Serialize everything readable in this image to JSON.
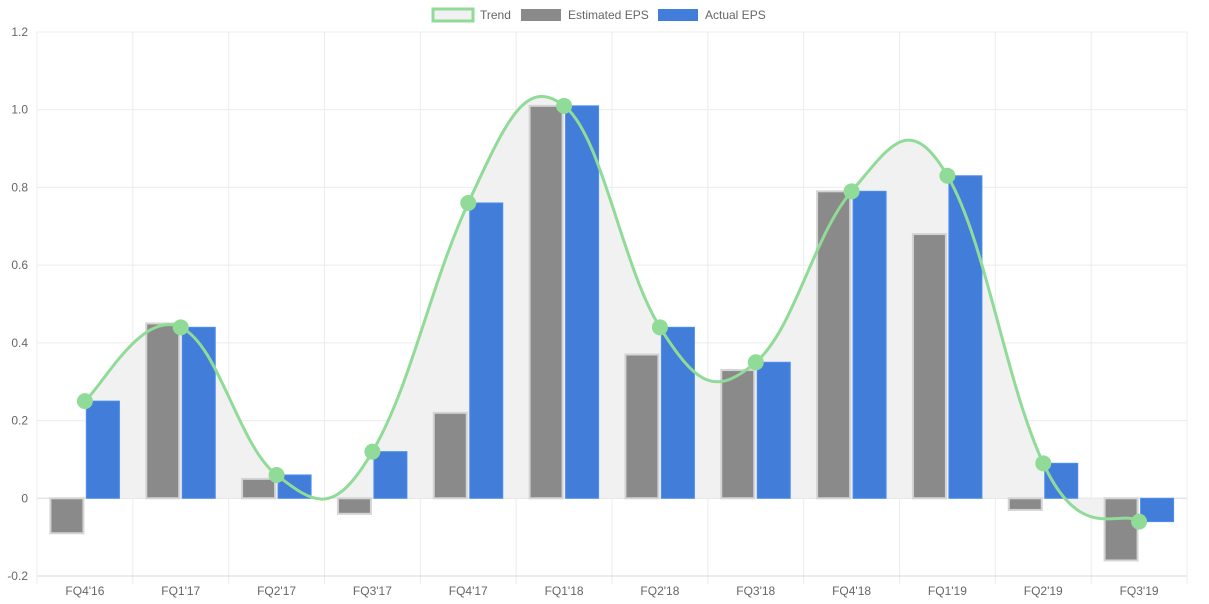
{
  "chart_data": {
    "type": "bar",
    "title": "",
    "xlabel": "",
    "ylabel": "",
    "categories": [
      "FQ4'16",
      "FQ1'17",
      "FQ2'17",
      "FQ3'17",
      "FQ4'17",
      "FQ1'18",
      "FQ2'18",
      "FQ3'18",
      "FQ4'18",
      "FQ1'19",
      "FQ2'19",
      "FQ3'19"
    ],
    "ylim": [
      -0.2,
      1.2
    ],
    "y_ticks": [
      "1.2",
      "1.0",
      "0.8",
      "0.6",
      "0.4",
      "0.2",
      "0",
      "-0.2"
    ],
    "y_tick_values": [
      1.2,
      1.0,
      0.8,
      0.6,
      0.4,
      0.2,
      0,
      -0.2
    ],
    "grid": true,
    "legend_position": "top-center",
    "series": [
      {
        "name": "Trend",
        "kind": "line",
        "values": [
          0.25,
          0.44,
          0.06,
          0.12,
          0.76,
          1.01,
          0.44,
          0.35,
          0.79,
          0.83,
          0.09,
          -0.06
        ],
        "color": "#90db98",
        "fill": "#f1f1f1"
      },
      {
        "name": "Estimated EPS",
        "kind": "bar",
        "values": [
          -0.09,
          0.45,
          0.05,
          -0.04,
          0.22,
          1.01,
          0.37,
          0.33,
          0.79,
          0.68,
          -0.03,
          -0.16
        ],
        "color": "#8a8a8a",
        "border": "#d4d4d4"
      },
      {
        "name": "Actual EPS",
        "kind": "bar",
        "values": [
          0.25,
          0.44,
          0.06,
          0.12,
          0.76,
          1.01,
          0.44,
          0.35,
          0.79,
          0.83,
          0.09,
          -0.06
        ],
        "color": "#427ed9",
        "border": "#4a8cf0"
      }
    ]
  }
}
